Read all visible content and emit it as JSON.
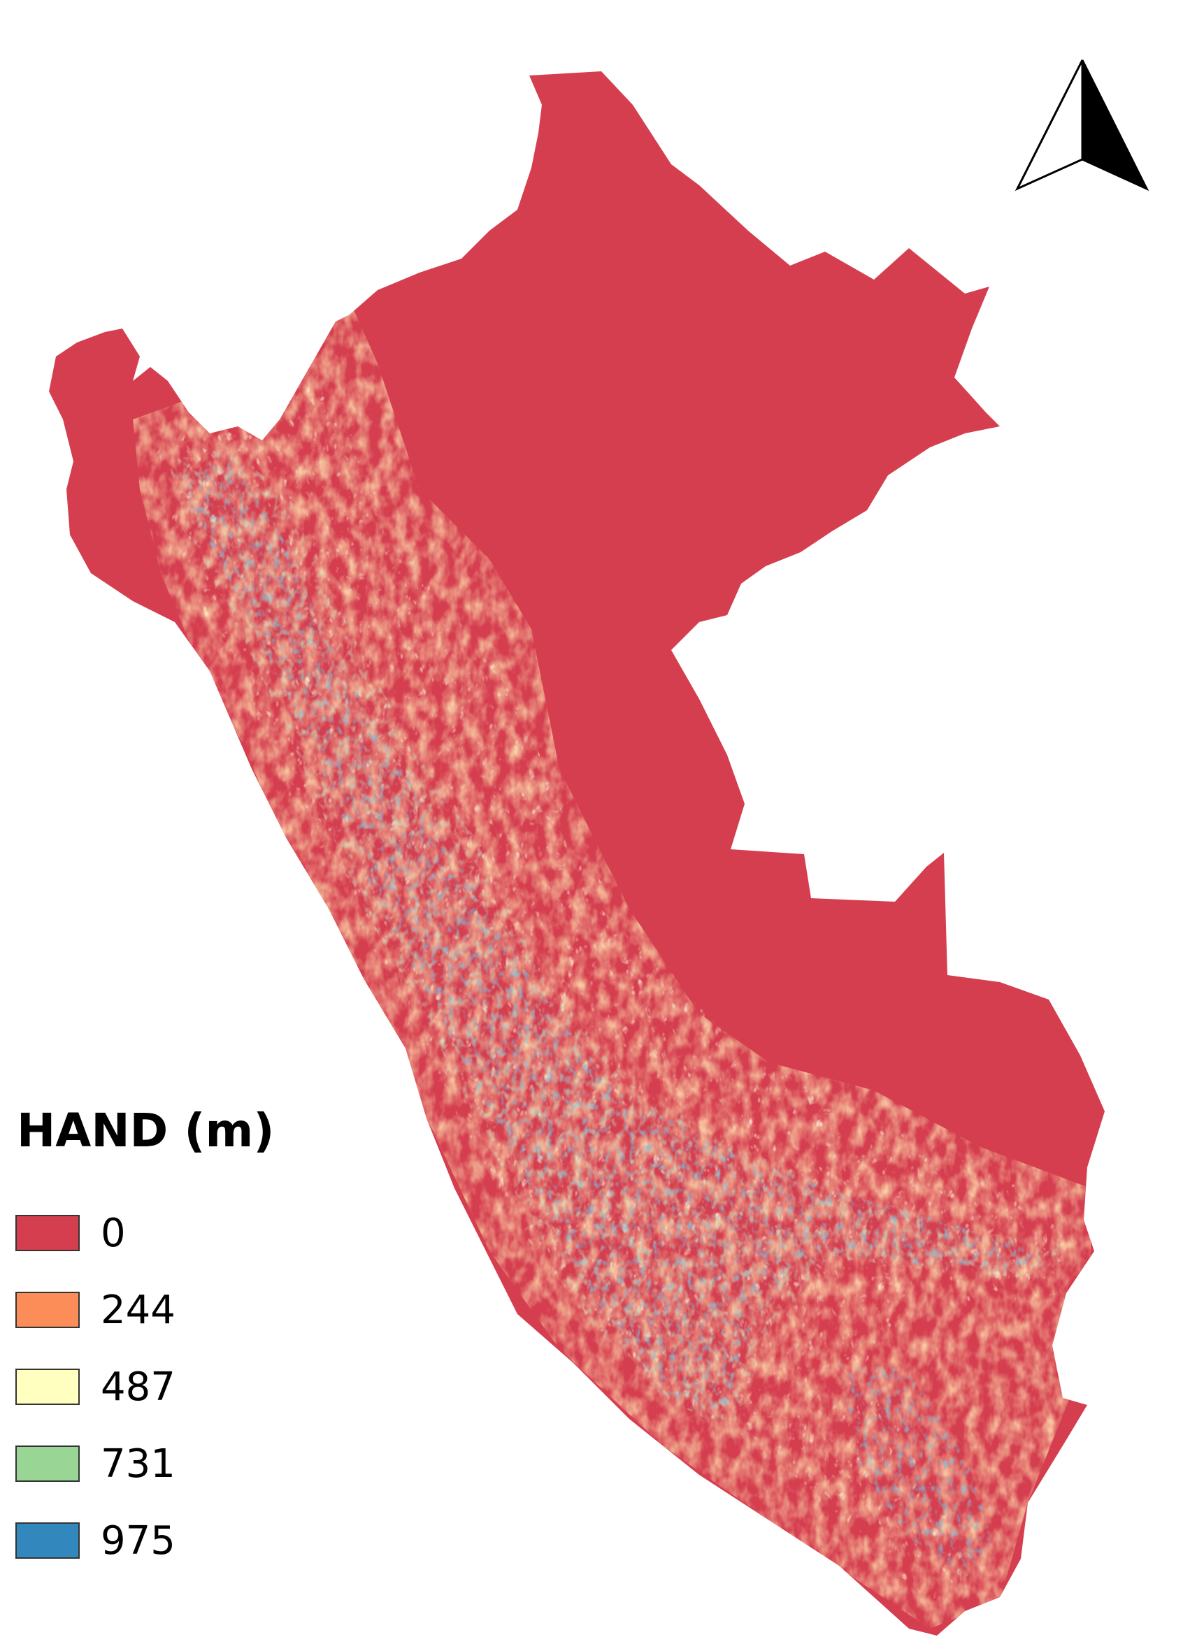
{
  "legend": {
    "title": "HAND (m)",
    "items": [
      {
        "label": "0",
        "color": "#d53e4f"
      },
      {
        "label": "244",
        "color": "#fc8d59"
      },
      {
        "label": "487",
        "color": "#ffffbf"
      },
      {
        "label": "731",
        "color": "#99d594"
      },
      {
        "label": "975",
        "color": "#3288bd"
      }
    ]
  },
  "north_arrow": {
    "icon": "north-arrow-icon"
  }
}
